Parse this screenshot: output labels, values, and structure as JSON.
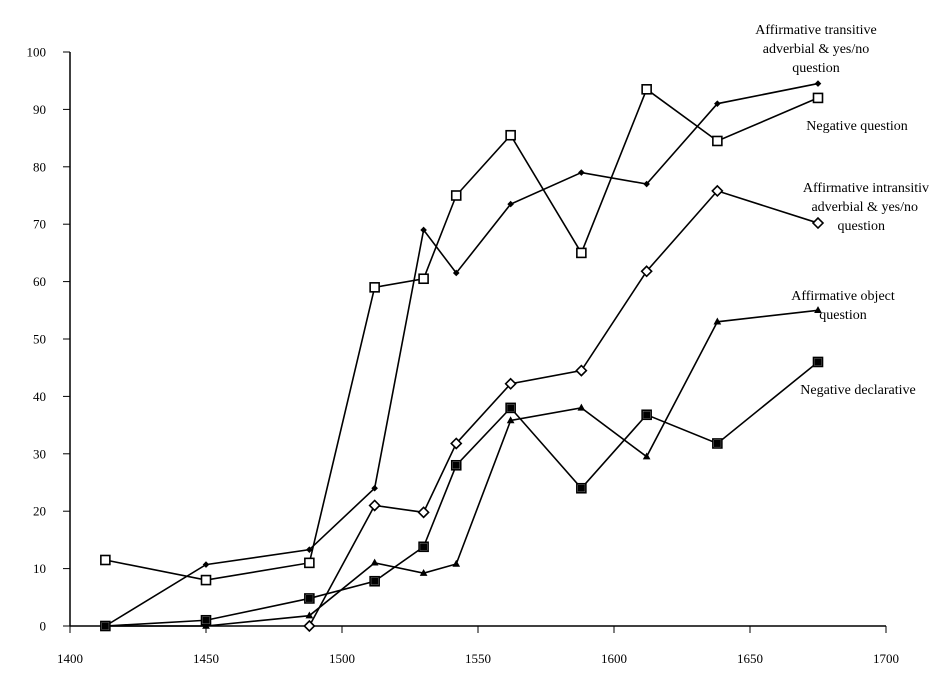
{
  "chart_data": {
    "type": "line",
    "title": "",
    "xlabel": "",
    "ylabel": "",
    "xlim": [
      1400,
      1700
    ],
    "ylim": [
      0,
      100
    ],
    "x_ticks": [
      1400,
      1450,
      1500,
      1550,
      1600,
      1650,
      1700
    ],
    "y_ticks": [
      0,
      10,
      20,
      30,
      40,
      50,
      60,
      70,
      80,
      90,
      100
    ],
    "grid": false,
    "legend": "inline labels at line ends",
    "series": [
      {
        "name": "Affirmative transitive adverbial & yes/no question",
        "label_lines": [
          "Affirmative transitive",
          "adverbial & yes/no",
          "question"
        ],
        "marker": "small-diamond",
        "points": [
          [
            1413,
            0
          ],
          [
            1450,
            10.7
          ],
          [
            1488,
            13.3
          ],
          [
            1512,
            24
          ],
          [
            1530,
            69
          ],
          [
            1542,
            61.5
          ],
          [
            1562,
            73.5
          ],
          [
            1588,
            79
          ],
          [
            1612,
            77
          ],
          [
            1638,
            91
          ],
          [
            1675,
            94.5
          ]
        ]
      },
      {
        "name": "Negative question",
        "label_lines": [
          "Negative question"
        ],
        "marker": "open-square",
        "points": [
          [
            1413,
            11.5
          ],
          [
            1450,
            8
          ],
          [
            1488,
            11
          ],
          [
            1512,
            59
          ],
          [
            1530,
            60.5
          ],
          [
            1542,
            75
          ],
          [
            1562,
            85.5
          ],
          [
            1588,
            65
          ],
          [
            1612,
            93.5
          ],
          [
            1638,
            84.5
          ],
          [
            1675,
            92
          ]
        ]
      },
      {
        "name": "Affirmative intransitive adverbial & yes/no question",
        "label_lines": [
          "Affirmative intransitiv",
          "adverbial & yes/no",
          "question"
        ],
        "marker": "open-diamond",
        "points": [
          [
            1488,
            0
          ],
          [
            1512,
            21
          ],
          [
            1530,
            19.8
          ],
          [
            1542,
            31.8
          ],
          [
            1562,
            42.2
          ],
          [
            1588,
            44.5
          ],
          [
            1612,
            61.8
          ],
          [
            1638,
            75.8
          ],
          [
            1675,
            70.2
          ]
        ]
      },
      {
        "name": "Affirmative object question",
        "label_lines": [
          "Affirmative object",
          "question"
        ],
        "marker": "triangle",
        "points": [
          [
            1413,
            0
          ],
          [
            1450,
            0
          ],
          [
            1488,
            1.8
          ],
          [
            1512,
            11
          ],
          [
            1530,
            9.2
          ],
          [
            1542,
            10.8
          ],
          [
            1562,
            35.8
          ],
          [
            1588,
            38
          ],
          [
            1612,
            29.5
          ],
          [
            1638,
            53
          ],
          [
            1675,
            55
          ]
        ]
      },
      {
        "name": "Negative declarative",
        "label_lines": [
          "Negative declarative"
        ],
        "marker": "filled-square",
        "points": [
          [
            1413,
            0
          ],
          [
            1450,
            1
          ],
          [
            1488,
            4.8
          ],
          [
            1512,
            7.8
          ],
          [
            1530,
            13.8
          ],
          [
            1542,
            28
          ],
          [
            1562,
            38
          ],
          [
            1588,
            24
          ],
          [
            1612,
            36.8
          ],
          [
            1638,
            31.8
          ],
          [
            1675,
            46
          ]
        ]
      }
    ]
  }
}
